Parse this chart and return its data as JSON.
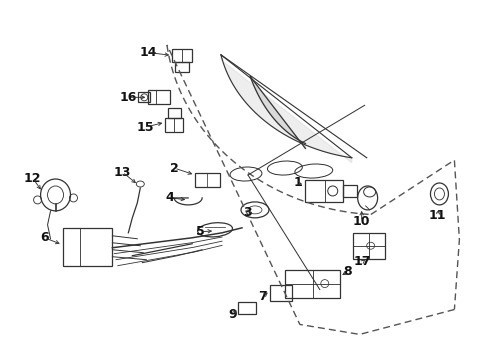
{
  "bg_color": "#ffffff",
  "fig_width": 4.89,
  "fig_height": 3.6,
  "dpi": 100,
  "label_fontsize": 9,
  "line_color": "#333333",
  "lw": 0.9
}
